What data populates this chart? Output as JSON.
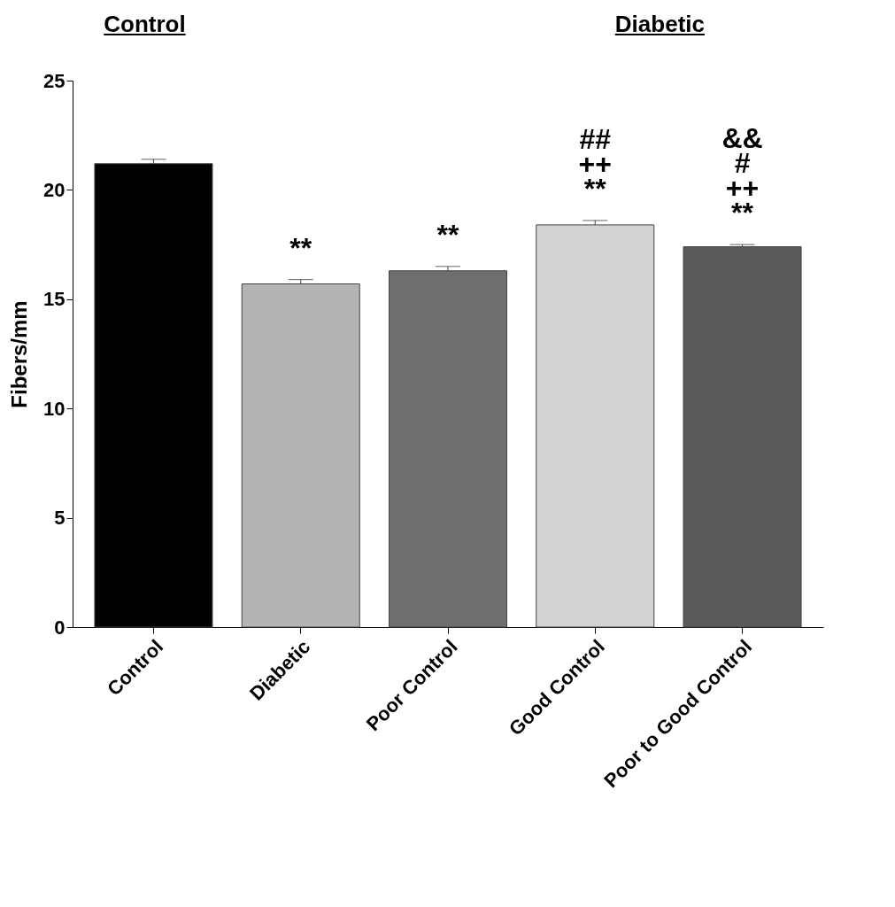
{
  "chart_data": {
    "type": "bar",
    "ylabel": "Fibers/mm",
    "categories": [
      "Control",
      "Diabetic",
      "Poor Control",
      "Good Control",
      "Poor to Good Control"
    ],
    "values": [
      21.2,
      15.7,
      16.3,
      18.4,
      17.4
    ],
    "errors": [
      [
        21.2,
        21.4
      ],
      [
        15.7,
        15.9
      ],
      [
        16.3,
        16.5
      ],
      [
        18.4,
        18.6
      ],
      [
        17.4,
        17.5
      ]
    ],
    "colors": [
      "#000000",
      "#b4b4b4",
      "#6e6e6e",
      "#d2d2d2",
      "#5a5a5a"
    ],
    "ylim": [
      0,
      25
    ],
    "yticks": [
      0,
      5,
      10,
      15,
      20,
      25
    ],
    "grid": false,
    "legend": false,
    "annotations": [
      "Control",
      "Diabetic",
      "**",
      "**",
      "##",
      "++",
      "**",
      "&&",
      "#",
      "++",
      "**"
    ]
  }
}
